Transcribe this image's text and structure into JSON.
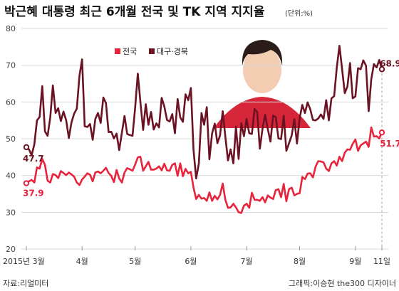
{
  "title": "박근혜 대통령 최근 6개월 전국 및 TK 지역 지지율",
  "unit": "(단위:%)",
  "source": "자료:리얼미터",
  "credit": "그래픽:이승현 the300 디자이너",
  "colors": {
    "national": "#e8243c",
    "tk": "#6b1322",
    "grid": "#d9d9d9"
  },
  "chart_data": {
    "type": "line",
    "title": "박근혜 대통령 최근 6개월 전국 및 TK 지역 지지율",
    "ylabel": "",
    "ylim": [
      20,
      80
    ],
    "yticks": [
      20,
      30,
      40,
      50,
      60,
      70,
      80
    ],
    "grid": true,
    "legend": "top-left",
    "xtick_labels": [
      {
        "label": "2015년 3월",
        "pos": 0
      },
      {
        "label": "4월",
        "pos": 21
      },
      {
        "label": "5월",
        "pos": 41
      },
      {
        "label": "6월",
        "pos": 62
      },
      {
        "label": "7월",
        "pos": 83
      },
      {
        "label": "8월",
        "pos": 103
      },
      {
        "label": "9월",
        "pos": 124
      },
      {
        "label": "11일",
        "pos": 134
      }
    ],
    "series": [
      {
        "name": "전국",
        "key": "national",
        "start_label": "37.9",
        "end_label": "51.7",
        "values": [
          37.9,
          38.4,
          38.8,
          38.1,
          42.2,
          41.9,
          44.5,
          42.9,
          38.6,
          38.1,
          40.4,
          40.1,
          39.3,
          41.2,
          40.7,
          40.1,
          40.8,
          40.3,
          39.7,
          38.1,
          37.4,
          38.9,
          39.7,
          40.6,
          40.2,
          38.4,
          40.8,
          41.1,
          40.6,
          41.3,
          42.1,
          40.7,
          39.9,
          38.2,
          41.5,
          39.2,
          38.1,
          40.8,
          42.0,
          41.7,
          41.3,
          43.0,
          44.9,
          45.1,
          41.3,
          42.5,
          43.7,
          41.6,
          41.6,
          41.9,
          42.5,
          41.4,
          43.2,
          41.4,
          41.3,
          42.9,
          43.3,
          39.9,
          43.3,
          39.8,
          41.8,
          40.6,
          41.0,
          36.7,
          33.6,
          34.7,
          33.7,
          33.9,
          33.1,
          35.4,
          33.1,
          34.5,
          33.5,
          34.7,
          37.8,
          33.4,
          31.2,
          31.3,
          32.3,
          31.3,
          30.0,
          29.8,
          31.8,
          32.3,
          31.2,
          35.3,
          33.4,
          33.4,
          33.1,
          34.1,
          32.7,
          34.6,
          34.0,
          33.6,
          36.0,
          36.3,
          34.1,
          37.7,
          33.0,
          36.3,
          36.7,
          34.6,
          35.0,
          35.2,
          39.6,
          39.0,
          40.5,
          40.6,
          39.5,
          42.4,
          43.9,
          43.8,
          43.6,
          41.9,
          41.2,
          43.3,
          43.9,
          42.7,
          45.1,
          43.9,
          46.2,
          47.1,
          47.0,
          48.6,
          49.8,
          46.7,
          48.2,
          48.7,
          49.2,
          47.8,
          53.1,
          50.6,
          50.7,
          50.1,
          51.7
        ]
      },
      {
        "name": "대구·경북",
        "key": "tk",
        "start_label": "47.7",
        "end_label": "68.9",
        "values": [
          47.7,
          47.1,
          45.5,
          48.5,
          55.0,
          55.9,
          64.3,
          52.0,
          50.8,
          55.7,
          64.5,
          57.0,
          58.3,
          54.8,
          57.4,
          55.0,
          50.2,
          54.4,
          56.8,
          58.2,
          67.1,
          71.6,
          53.4,
          53.2,
          54.0,
          49.7,
          55.4,
          57.0,
          54.3,
          61.2,
          59.7,
          51.8,
          51.9,
          50.1,
          51.4,
          46.9,
          51.7,
          56.2,
          51.3,
          51.0,
          50.8,
          58.5,
          67.7,
          59.9,
          52.4,
          59.4,
          53.8,
          57.3,
          52.5,
          54.2,
          53.1,
          61.1,
          58.8,
          55.1,
          54.7,
          56.7,
          51.5,
          60.8,
          55.8,
          54.6,
          62.1,
          60.5,
          63.8,
          47.0,
          39.2,
          43.3,
          57.0,
          53.8,
          58.6,
          44.4,
          51.5,
          54.1,
          48.8,
          50.9,
          57.5,
          50.5,
          44.1,
          47.1,
          43.3,
          53.3,
          44.5,
          54.2,
          50.7,
          55.4,
          51.5,
          51.3,
          58.1,
          57.3,
          47.3,
          52.7,
          56.5,
          52.6,
          49.2,
          56.3,
          55.9,
          50.1,
          49.9,
          56.3,
          46.7,
          48.8,
          50.9,
          55.3,
          48.7,
          55.7,
          59.2,
          57.0,
          59.9,
          58.0,
          55.1,
          55.0,
          55.5,
          56.6,
          55.4,
          60.5,
          55.0,
          61.0,
          61.6,
          69.4,
          75.3,
          69.0,
          62.4,
          64.2,
          70.6,
          61.0,
          61.5,
          69.2,
          68.9,
          71.3,
          69.9,
          57.5,
          66.2,
          70.3,
          69.4,
          71.4,
          68.9
        ]
      }
    ]
  }
}
